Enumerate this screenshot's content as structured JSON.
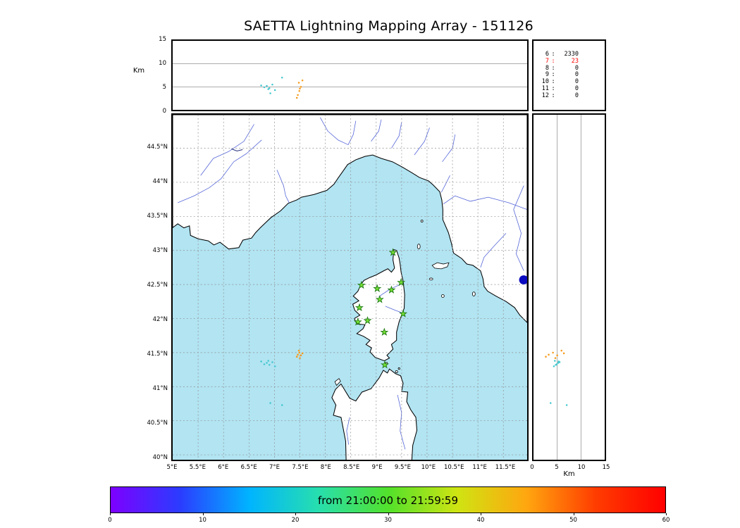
{
  "title": "SAETTA Lightning Mapping Array - 151126",
  "panels": {
    "alt_lon": {
      "ylabel": "Km",
      "yticks": [
        "0",
        "5",
        "10",
        "15"
      ],
      "ytick_values": [
        0,
        5,
        10,
        15
      ]
    },
    "alt_lat": {
      "xlabel": "Km",
      "xticks": [
        "0",
        "5",
        "10",
        "15"
      ],
      "xtick_values": [
        0,
        5,
        10,
        15
      ]
    },
    "map": {
      "lat_tick_labels": [
        "44.5°N",
        "44°N",
        "43.5°N",
        "43°N",
        "42.5°N",
        "42°N",
        "41.5°N",
        "41°N",
        "40.5°N",
        "40°N"
      ],
      "lat_tick_values": [
        44.5,
        44,
        43.5,
        43,
        42.5,
        42,
        41.5,
        41,
        40.5,
        40
      ],
      "lon_tick_labels": [
        "5°E",
        "5.5°E",
        "6°E",
        "6.5°E",
        "7°E",
        "7.5°E",
        "8°E",
        "8.5°E",
        "9°E",
        "9.5°E",
        "10°E",
        "10.5°E",
        "11°E",
        "11.5°E"
      ],
      "lon_tick_values": [
        5,
        5.5,
        6,
        6.5,
        7,
        7.5,
        8,
        8.5,
        9,
        9.5,
        10,
        10.5,
        11,
        11.5
      ],
      "colors": {
        "sea": "#b2e4f2",
        "land": "#ffffff",
        "lake": "#0a0ac0"
      }
    },
    "counts": {
      "rows": [
        {
          "station": "6",
          "value": "2330",
          "highlight": false
        },
        {
          "station": "7",
          "value": "23",
          "highlight": true
        },
        {
          "station": "8",
          "value": "0",
          "highlight": false
        },
        {
          "station": "9",
          "value": "0",
          "highlight": false
        },
        {
          "station": "10",
          "value": "0",
          "highlight": false
        },
        {
          "station": "11",
          "value": "0",
          "highlight": false
        },
        {
          "station": "12",
          "value": "0",
          "highlight": false
        }
      ],
      "highlight_color": "#ff0000"
    }
  },
  "colorbar": {
    "label": "from 21:00:00 to 21:59:59",
    "tick_labels": [
      "0",
      "10",
      "20",
      "30",
      "40",
      "50",
      "60"
    ],
    "gradient_colors": [
      "#7d00ff",
      "#2b3cff",
      "#00b4ff",
      "#27dfae",
      "#52e12b",
      "#cfe412",
      "#ffa60f",
      "#ff3c00",
      "#ff0000"
    ]
  },
  "chart_data": {
    "type": "scatter",
    "title": "SAETTA Lightning Mapping Array - 151126",
    "map_extent": {
      "lon_min": 5,
      "lon_max": 11.9,
      "lat_min": 39.95,
      "lat_max": 44.95
    },
    "altitude_axis_km": {
      "min": 0,
      "max": 15,
      "ticks": [
        0,
        5,
        10,
        15
      ],
      "label": "Km"
    },
    "time_window_minutes": {
      "label": "from 21:00:00 to 21:59:59",
      "min": 0,
      "max": 60,
      "ticks": [
        0,
        10,
        20,
        30,
        40,
        50,
        60
      ]
    },
    "station_counts": [
      {
        "station": 6,
        "count": 2330
      },
      {
        "station": 7,
        "count": 23
      },
      {
        "station": 8,
        "count": 0
      },
      {
        "station": 9,
        "count": 0
      },
      {
        "station": 10,
        "count": 0
      },
      {
        "station": 11,
        "count": 0
      },
      {
        "station": 12,
        "count": 0
      }
    ],
    "station_marker": {
      "shape": "star",
      "color": "#76e035"
    },
    "stations_lonlat": [
      [
        9.33,
        42.97
      ],
      [
        8.71,
        42.49
      ],
      [
        9.02,
        42.44
      ],
      [
        9.3,
        42.42
      ],
      [
        9.49,
        42.53
      ],
      [
        8.67,
        42.16
      ],
      [
        9.07,
        42.28
      ],
      [
        8.64,
        41.95
      ],
      [
        8.83,
        41.97
      ],
      [
        9.53,
        42.07
      ],
      [
        9.16,
        41.8
      ],
      [
        9.17,
        41.32
      ]
    ],
    "sources": [
      {
        "lon": 7.46,
        "lat": 41.47,
        "alt_km": 3.2,
        "color": "#f59b1e"
      },
      {
        "lon": 7.49,
        "lat": 41.5,
        "alt_km": 4.1,
        "color": "#f59b1e"
      },
      {
        "lon": 7.52,
        "lat": 41.46,
        "alt_km": 5.0,
        "color": "#f59b1e"
      },
      {
        "lon": 7.48,
        "lat": 41.53,
        "alt_km": 5.9,
        "color": "#f59b1e"
      },
      {
        "lon": 7.55,
        "lat": 41.49,
        "alt_km": 6.4,
        "color": "#f59b1e"
      },
      {
        "lon": 7.44,
        "lat": 41.44,
        "alt_km": 2.6,
        "color": "#f59b1e"
      },
      {
        "lon": 7.5,
        "lat": 41.42,
        "alt_km": 4.6,
        "color": "#f59b1e"
      },
      {
        "lon": 6.85,
        "lat": 41.35,
        "alt_km": 5.2,
        "color": "#45c8cf"
      },
      {
        "lon": 6.9,
        "lat": 41.32,
        "alt_km": 4.7,
        "color": "#45c8cf"
      },
      {
        "lon": 6.96,
        "lat": 41.36,
        "alt_km": 5.5,
        "color": "#45c8cf"
      },
      {
        "lon": 7.01,
        "lat": 41.3,
        "alt_km": 4.3,
        "color": "#45c8cf"
      },
      {
        "lon": 6.8,
        "lat": 41.33,
        "alt_km": 4.9,
        "color": "#45c8cf"
      },
      {
        "lon": 6.74,
        "lat": 41.37,
        "alt_km": 5.3,
        "color": "#45c8cf"
      },
      {
        "lon": 6.88,
        "lat": 41.38,
        "alt_km": 4.5,
        "color": "#45c8cf"
      },
      {
        "lon": 6.92,
        "lat": 40.76,
        "alt_km": 3.6,
        "color": "#45c8cf"
      },
      {
        "lon": 7.15,
        "lat": 40.73,
        "alt_km": 7.0,
        "color": "#45c8cf"
      }
    ]
  }
}
